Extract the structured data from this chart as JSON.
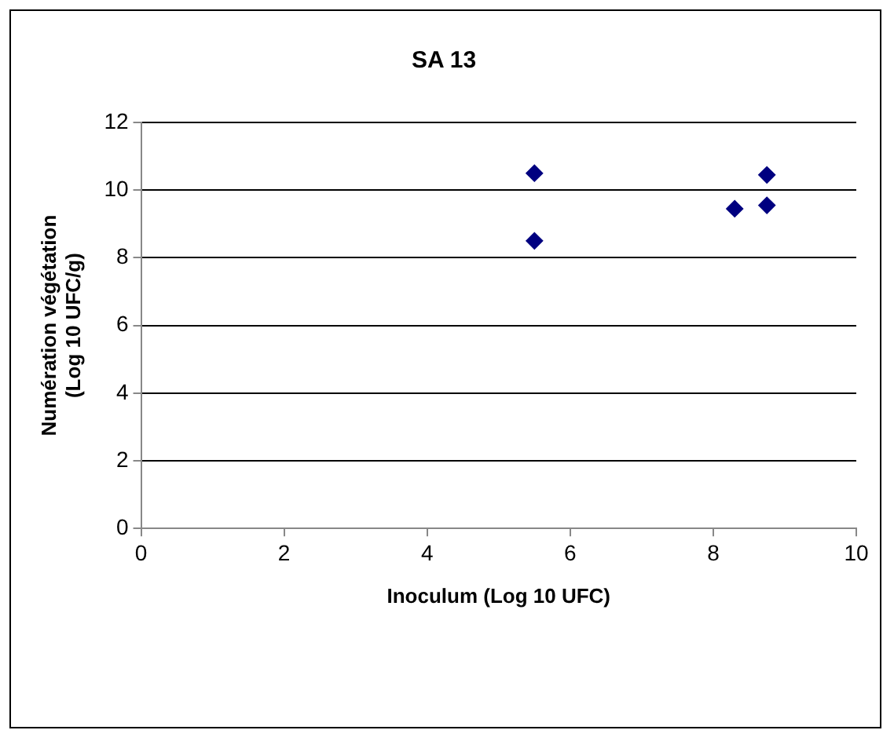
{
  "chart_data": {
    "type": "scatter",
    "title": "SA 13",
    "xlabel": "Inoculum (Log 10 UFC)",
    "ylabel": "Numération végétation\n(Log 10 UFC/g)",
    "x": [
      5.5,
      5.5,
      8.3,
      8.75,
      8.75
    ],
    "values": [
      10.5,
      8.5,
      9.45,
      10.45,
      9.55
    ],
    "color": "#000080",
    "marker": "diamond",
    "xlim": [
      0,
      10
    ],
    "xticks": [
      0,
      2,
      4,
      6,
      8,
      10
    ],
    "ylim": [
      0,
      12
    ],
    "yticks": [
      0,
      2,
      4,
      6,
      8,
      10,
      12
    ],
    "grid": "y",
    "legend": false
  }
}
